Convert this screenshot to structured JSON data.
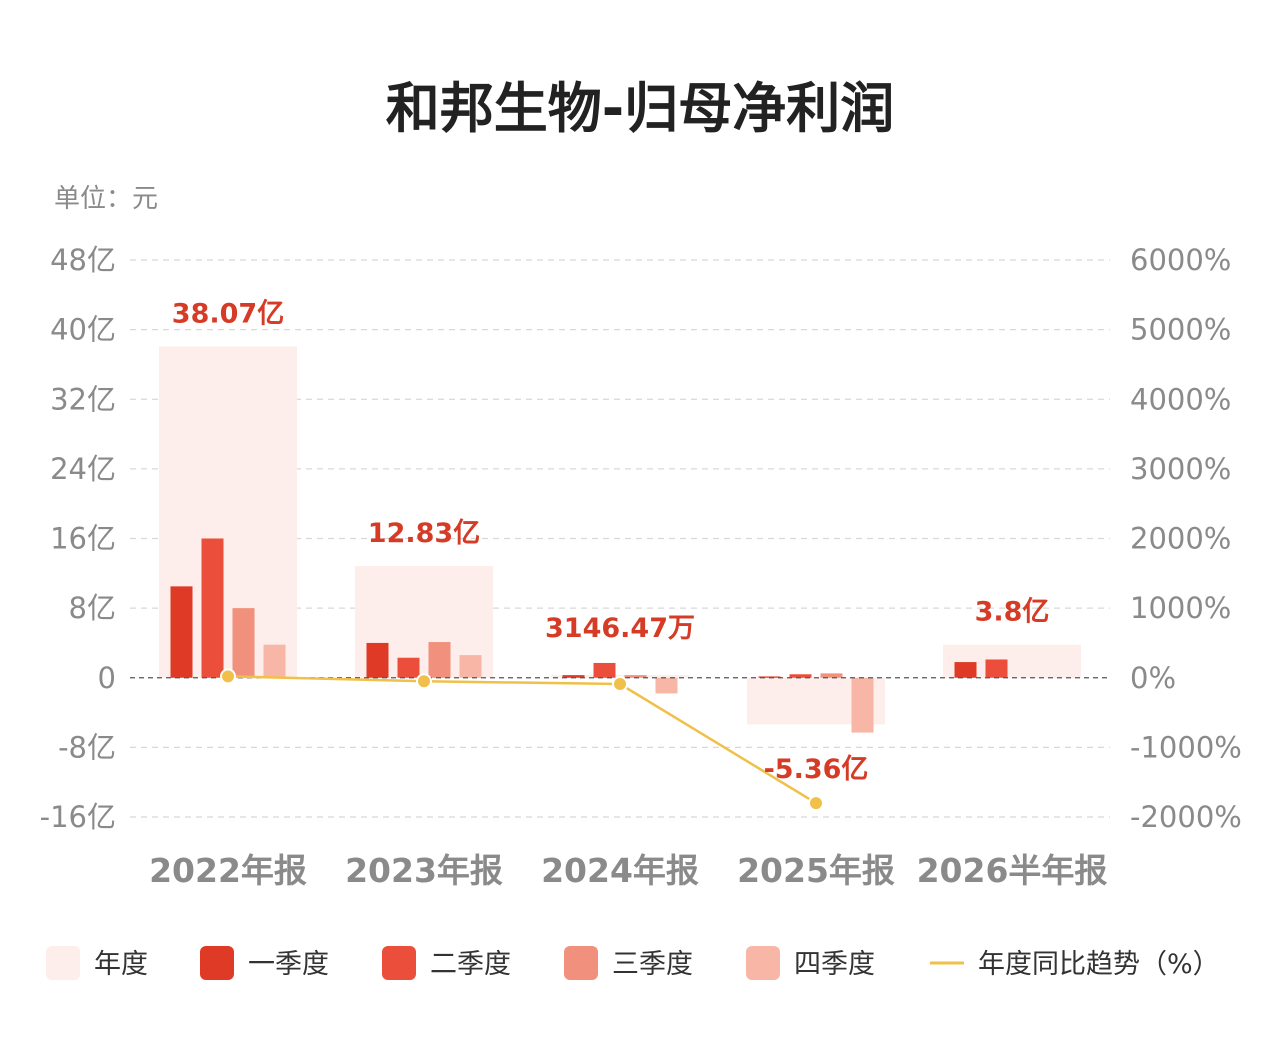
{
  "chart_data": {
    "type": "bar",
    "title": "和邦生物-归母净利润",
    "unit_label": "单位：元",
    "categories": [
      "2022年报",
      "2023年报",
      "2024年报",
      "2025年报",
      "2026半年报"
    ],
    "y_left": {
      "ylim": [
        -16,
        48
      ],
      "ticks": [
        48,
        40,
        32,
        24,
        16,
        8,
        0,
        -8,
        -16
      ],
      "tick_labels": [
        "48亿",
        "40亿",
        "32亿",
        "24亿",
        "16亿",
        "8亿",
        "0",
        "-8亿",
        "-16亿"
      ]
    },
    "y_right": {
      "ylim": [
        -2000,
        6000
      ],
      "tick_labels": [
        "6000%",
        "5000%",
        "4000%",
        "3000%",
        "2000%",
        "1000%",
        "0%",
        "-1000%",
        "-2000%"
      ]
    },
    "annual": {
      "name": "年度",
      "values": [
        38.07,
        12.83,
        0.3146,
        -5.36,
        3.8
      ],
      "labels": [
        "38.07亿",
        "12.83亿",
        "3146.47万",
        "-5.36亿",
        "3.8亿"
      ],
      "color": "#fdeeeb"
    },
    "series": [
      {
        "name": "一季度",
        "color": "#de3a26",
        "values": [
          10.5,
          4.0,
          0.3,
          0.15,
          1.8
        ]
      },
      {
        "name": "二季度",
        "color": "#eb4f3b",
        "values": [
          16.0,
          2.3,
          1.7,
          0.4,
          2.1
        ]
      },
      {
        "name": "三季度",
        "color": "#f1907c",
        "values": [
          8.0,
          4.1,
          0.3,
          0.5,
          null
        ]
      },
      {
        "name": "四季度",
        "color": "#f8b6a6",
        "values": [
          3.8,
          2.6,
          -1.8,
          -6.3,
          null
        ]
      }
    ],
    "trend": {
      "name": "年度同比趋势（%）",
      "color": "#f0c04a",
      "values": [
        20,
        -50,
        -90,
        -1800
      ]
    },
    "grid": true,
    "legend_position": "bottom",
    "label_color": "#d63b26"
  }
}
